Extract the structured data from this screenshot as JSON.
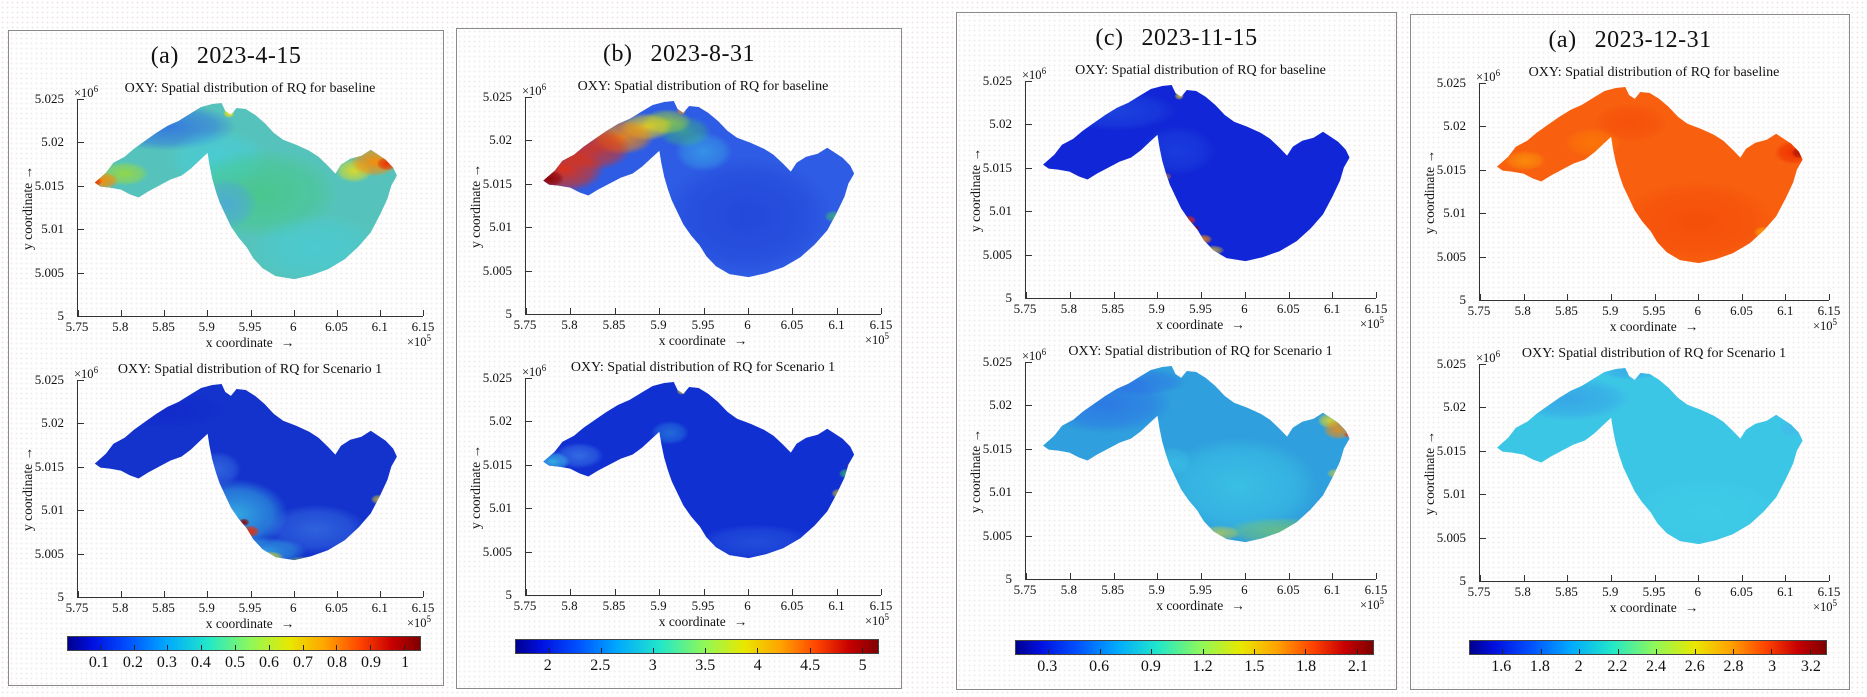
{
  "figure": {
    "shared": {
      "baseline_title": "OXY: Spatial distribution of RQ for baseline",
      "scenario_title": "OXY: Spatial distribution of RQ for Scenario 1",
      "xlabel": "x coordinate",
      "ylabel": "y coordinate",
      "arrow": "→",
      "x_scale_base": "×10",
      "x_scale_exp": "5",
      "y_scale_base": "×10",
      "y_scale_exp": "6",
      "xticks": [
        "5.75",
        "5.8",
        "5.85",
        "5.9",
        "5.95",
        "6",
        "6.05",
        "6.1",
        "6.15"
      ],
      "yticks": [
        "5.025",
        "5.02",
        "5.015",
        "5.01",
        "5.005",
        "5"
      ]
    },
    "panels": [
      {
        "label": "(a)",
        "date": "2023-4-15",
        "colorbar_ticks": [
          "0.1",
          "0.2",
          "0.3",
          "0.4",
          "0.5",
          "0.6",
          "0.7",
          "0.8",
          "0.9",
          "1"
        ]
      },
      {
        "label": "(b)",
        "date": "2023-8-31",
        "colorbar_ticks": [
          "2",
          "2.5",
          "3",
          "3.5",
          "4",
          "4.5",
          "5"
        ]
      },
      {
        "label": "(c)",
        "date": "2023-11-15",
        "colorbar_ticks": [
          "0.3",
          "0.6",
          "0.9",
          "1.2",
          "1.5",
          "1.8",
          "2.1"
        ]
      },
      {
        "label": "(a)",
        "date": "2023-12-31",
        "colorbar_ticks": [
          "1.6",
          "1.8",
          "2",
          "2.2",
          "2.4",
          "2.6",
          "2.8",
          "3",
          "3.2"
        ]
      }
    ]
  },
  "chart_data": [
    {
      "type": "heatmap",
      "panel_label": "(a)",
      "date": "2023-4-15",
      "maps": [
        {
          "title": "OXY: Spatial distribution of RQ for baseline",
          "summary": "Mostly cyan-green RQ ~0.3-0.5; blue ~0.2 along northwest arm; orange-red hotspot ~0.8-1 at northeast head; orange ~0.7 at far west tip; green ~0.5 mid-basin."
        },
        {
          "title": "OXY: Spatial distribution of RQ for Scenario 1",
          "summary": "Mostly dark blue RQ ~0.1-0.2; cyan band ~0.3-0.4 along southwest inner shore; small red/yellow hotspots ~0.8-1 on southern shoreline."
        }
      ],
      "x_axis": {
        "label": "x coordinate",
        "ticks": [
          5.75,
          5.8,
          5.85,
          5.9,
          5.95,
          6,
          6.05,
          6.1,
          6.15
        ],
        "scale": "1e5"
      },
      "y_axis": {
        "label": "y coordinate",
        "ticks": [
          5.025,
          5.02,
          5.015,
          5.01,
          5.005,
          5
        ],
        "scale": "1e6"
      },
      "colorbar": {
        "colormap": "jet",
        "ticks": [
          0.1,
          0.2,
          0.3,
          0.4,
          0.5,
          0.6,
          0.7,
          0.8,
          0.9,
          1
        ]
      }
    },
    {
      "type": "heatmap",
      "panel_label": "(b)",
      "date": "2023-8-31",
      "maps": [
        {
          "title": "OXY: Spatial distribution of RQ for baseline",
          "summary": "Northwest arm deep red ~5 grading through orange/yellow/green to blue ~2.5 over the main basin."
        },
        {
          "title": "OXY: Spatial distribution of RQ for Scenario 1",
          "summary": "Nearly uniform dark blue ~2; cyan ~2.5 at west arm tip; tiny yellow-green spots ~3.5-4 on southeast edge."
        }
      ],
      "x_axis": {
        "label": "x coordinate",
        "ticks": [
          5.75,
          5.8,
          5.85,
          5.9,
          5.95,
          6,
          6.05,
          6.1,
          6.15
        ],
        "scale": "1e5"
      },
      "y_axis": {
        "label": "y coordinate",
        "ticks": [
          5.025,
          5.02,
          5.015,
          5.01,
          5.005,
          5
        ],
        "scale": "1e6"
      },
      "colorbar": {
        "colormap": "jet",
        "ticks": [
          2,
          2.5,
          3,
          3.5,
          4,
          4.5,
          5
        ]
      }
    },
    {
      "type": "heatmap",
      "panel_label": "(c)",
      "date": "2023-11-15",
      "maps": [
        {
          "title": "OXY: Spatial distribution of RQ for baseline",
          "summary": "Almost uniform dark blue ~0.3; small red/orange/yellow hotspots ~1.5-2.1 on the southwest inner shoreline."
        },
        {
          "title": "OXY: Spatial distribution of RQ for Scenario 1",
          "summary": "Medium blue-cyan ~0.6-0.9; deeper blue arm; yellow-orange hotspot ~1.5-1.8 at northeast head; yellow-green ~1.2 along southern edge."
        }
      ],
      "x_axis": {
        "label": "x coordinate",
        "ticks": [
          5.75,
          5.8,
          5.85,
          5.9,
          5.95,
          6,
          6.05,
          6.1,
          6.15
        ],
        "scale": "1e5"
      },
      "y_axis": {
        "label": "y coordinate",
        "ticks": [
          5.025,
          5.02,
          5.015,
          5.01,
          5.005,
          5
        ],
        "scale": "1e6"
      },
      "colorbar": {
        "colormap": "jet",
        "ticks": [
          0.3,
          0.6,
          0.9,
          1.2,
          1.5,
          1.8,
          2.1
        ]
      }
    },
    {
      "type": "heatmap",
      "panel_label": "(a)",
      "date": "2023-12-31",
      "maps": [
        {
          "title": "OXY: Spatial distribution of RQ for baseline",
          "summary": "Nearly uniform orange ~2.8-3; darker red ~3.2 at the northeast head."
        },
        {
          "title": "OXY: Spatial distribution of RQ for Scenario 1",
          "summary": "Nearly uniform cyan ~2-2.2 across the whole lake; slightly deeper blue on the northwest arm."
        }
      ],
      "x_axis": {
        "label": "x coordinate",
        "ticks": [
          5.75,
          5.8,
          5.85,
          5.9,
          5.95,
          6,
          6.05,
          6.1,
          6.15
        ],
        "scale": "1e5"
      },
      "y_axis": {
        "label": "y coordinate",
        "ticks": [
          5.025,
          5.02,
          5.015,
          5.01,
          5.005,
          5
        ],
        "scale": "1e6"
      },
      "colorbar": {
        "colormap": "jet",
        "ticks": [
          1.6,
          1.8,
          2,
          2.2,
          2.4,
          2.6,
          2.8,
          3,
          3.2
        ]
      }
    }
  ]
}
